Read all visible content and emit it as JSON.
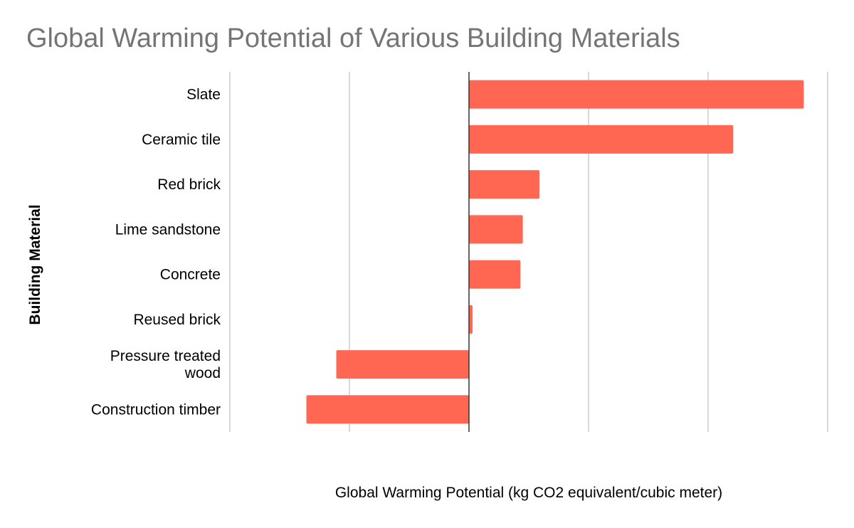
{
  "chart_data": {
    "type": "bar",
    "orientation": "horizontal",
    "title": "Global Warming Potential of Various Building Materials",
    "xlabel": "Global Warming Potential (kg CO2 equivalent/cubic meter)",
    "ylabel": "Building Material",
    "categories": [
      "Slate",
      "Ceramic tile",
      "Red brick",
      "Lime sandstone",
      "Concrete",
      "Reused brick",
      "Pressure treated wood",
      "Construction timber"
    ],
    "category_label_lines": [
      [
        "Slate"
      ],
      [
        "Ceramic tile"
      ],
      [
        "Red brick"
      ],
      [
        "Lime sandstone"
      ],
      [
        "Concrete"
      ],
      [
        "Reused brick"
      ],
      [
        "Pressure treated",
        "wood"
      ],
      [
        "Construction timber"
      ]
    ],
    "values": [
      280,
      221,
      59,
      45,
      43,
      3,
      -111,
      -136
    ],
    "xlim": [
      -200,
      300
    ],
    "grid_step": 100,
    "grid": true,
    "legend": "none",
    "bar_color": "#ff6753"
  }
}
